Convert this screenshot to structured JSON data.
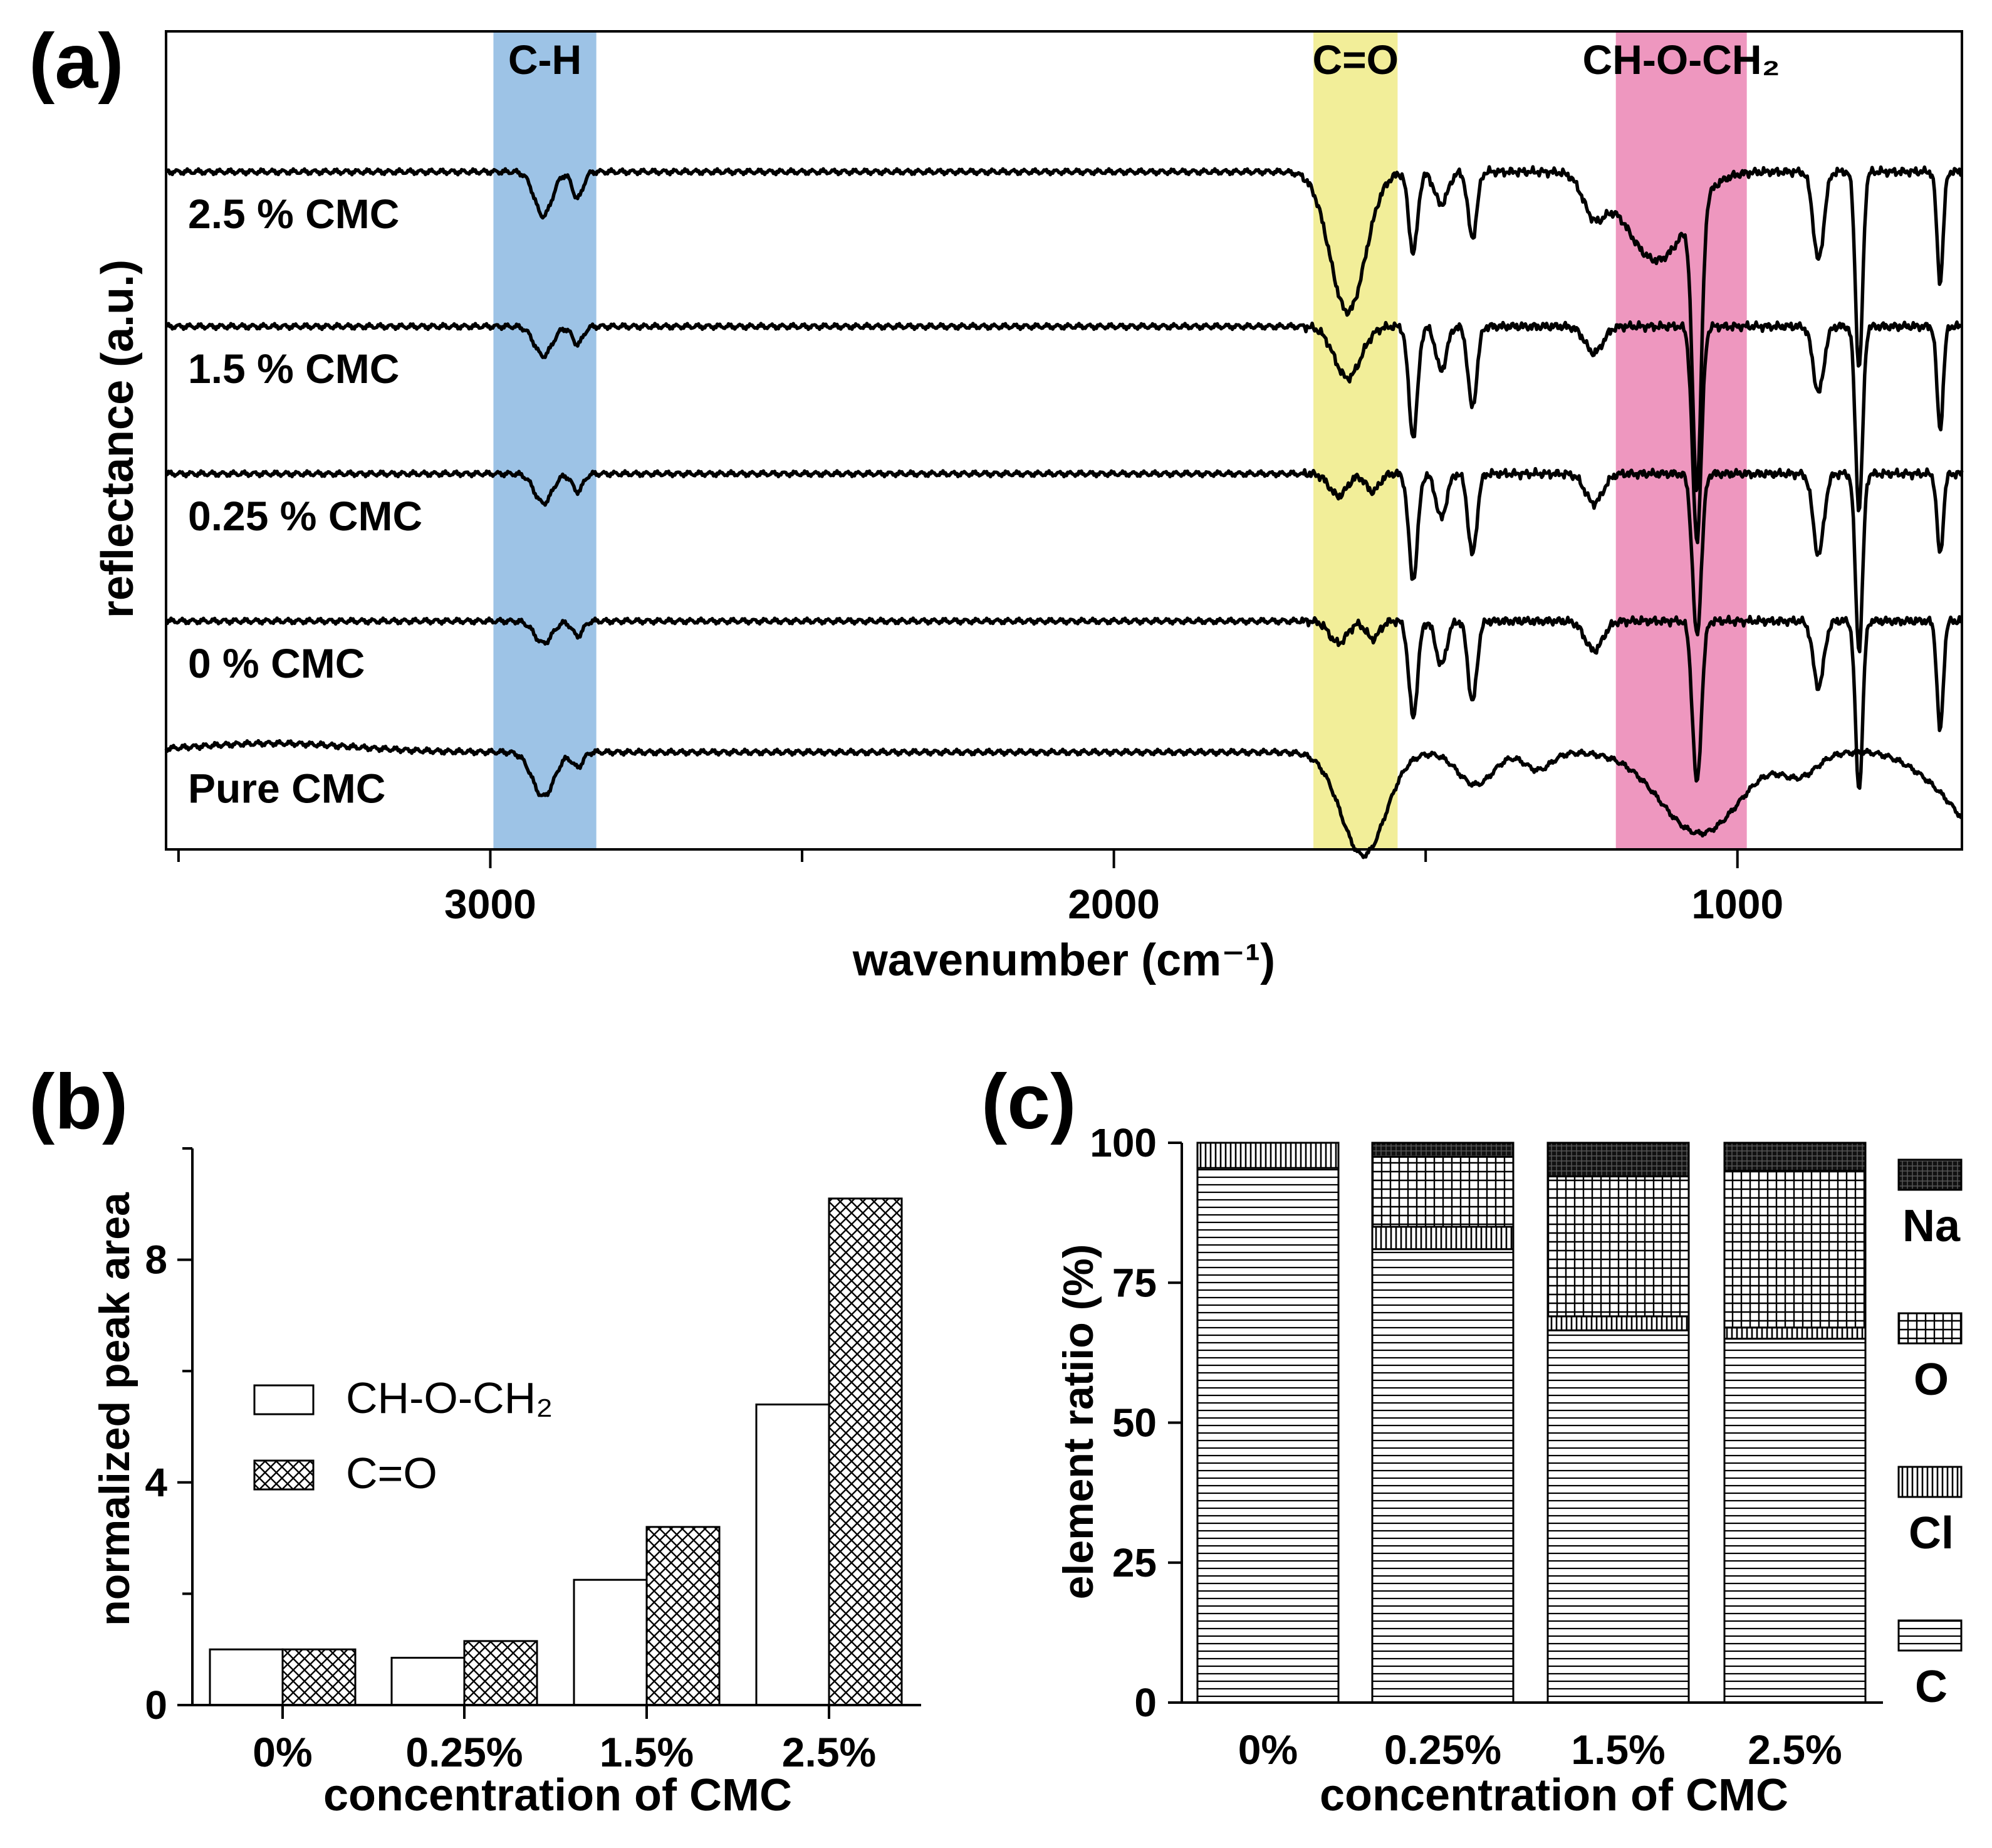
{
  "chart_data": [
    {
      "panel": "(a)",
      "type": "line",
      "xlabel": "wavenumber (cm⁻¹)",
      "ylabel": "reflectance (a.u.)",
      "xlim": [
        3520,
        640
      ],
      "xticks": [
        3000,
        2000,
        1000
      ],
      "xtick_labels": [
        "3000",
        "2000",
        "1000"
      ],
      "bands": [
        {
          "label": "C-H",
          "from": 2995,
          "to": 2830,
          "color": "#9dc3e6"
        },
        {
          "label": "C=O",
          "from": 1680,
          "to": 1545,
          "color": "#f2ee99"
        },
        {
          "label": "CH-O-CH₂",
          "from": 1195,
          "to": 985,
          "color": "#ee97bf"
        }
      ],
      "series": [
        {
          "name": "2.5 % CMC",
          "label": "2.5 % CMC",
          "baseline": 4.6,
          "dips": [
            [
              2915,
              0.3,
              20
            ],
            [
              2860,
              0.18,
              12
            ],
            [
              1625,
              0.95,
              40
            ],
            [
              1520,
              0.55,
              10
            ],
            [
              1475,
              0.22,
              15
            ],
            [
              1425,
              0.45,
              10
            ],
            [
              1230,
              0.25,
              25
            ],
            [
              1130,
              0.6,
              70
            ],
            [
              1065,
              1.9,
              10
            ],
            [
              870,
              0.6,
              12
            ],
            [
              805,
              1.35,
              8
            ],
            [
              675,
              0.75,
              7
            ]
          ]
        },
        {
          "name": "1.5 % CMC",
          "label": "1.5 % CMC",
          "baseline": 3.55,
          "dips": [
            [
              2915,
              0.2,
              20
            ],
            [
              2860,
              0.12,
              12
            ],
            [
              1625,
              0.35,
              30
            ],
            [
              1520,
              0.75,
              10
            ],
            [
              1475,
              0.3,
              12
            ],
            [
              1425,
              0.55,
              10
            ],
            [
              1230,
              0.18,
              20
            ],
            [
              1065,
              1.45,
              10
            ],
            [
              870,
              0.45,
              12
            ],
            [
              805,
              1.25,
              8
            ],
            [
              675,
              0.7,
              7
            ]
          ]
        },
        {
          "name": "0.25 % CMC",
          "label": "0.25 % CMC",
          "baseline": 2.55,
          "dips": [
            [
              2915,
              0.2,
              20
            ],
            [
              2860,
              0.12,
              12
            ],
            [
              1640,
              0.15,
              20
            ],
            [
              1585,
              0.12,
              15
            ],
            [
              1520,
              0.72,
              10
            ],
            [
              1475,
              0.3,
              12
            ],
            [
              1425,
              0.55,
              10
            ],
            [
              1230,
              0.2,
              20
            ],
            [
              1065,
              1.1,
              10
            ],
            [
              870,
              0.55,
              12
            ],
            [
              805,
              1.2,
              8
            ],
            [
              675,
              0.55,
              7
            ]
          ]
        },
        {
          "name": "0 % CMC",
          "label": "0 % CMC",
          "baseline": 1.55,
          "dips": [
            [
              2915,
              0.15,
              20
            ],
            [
              2860,
              0.1,
              12
            ],
            [
              1640,
              0.15,
              20
            ],
            [
              1585,
              0.12,
              15
            ],
            [
              1520,
              0.65,
              10
            ],
            [
              1475,
              0.3,
              12
            ],
            [
              1425,
              0.55,
              10
            ],
            [
              1230,
              0.2,
              20
            ],
            [
              1065,
              1.1,
              10
            ],
            [
              870,
              0.45,
              12
            ],
            [
              805,
              1.15,
              8
            ],
            [
              675,
              0.75,
              7
            ]
          ]
        },
        {
          "name": "Pure CMC",
          "label": "Pure CMC",
          "baseline": 0.7,
          "dips": [
            [
              2915,
              0.3,
              25
            ],
            [
              2860,
              0.1,
              12
            ],
            [
              1600,
              0.7,
              50
            ],
            [
              1420,
              0.22,
              40
            ],
            [
              1320,
              0.12,
              30
            ],
            [
              1060,
              0.55,
              90
            ],
            [
              900,
              0.15,
              40
            ]
          ]
        }
      ]
    },
    {
      "panel": "(b)",
      "type": "bar",
      "title": "",
      "xlabel": "concentration of CMC",
      "ylabel": "normalized peak area",
      "categories": [
        "0%",
        "0.25%",
        "1.5%",
        "2.5%"
      ],
      "ylim": [
        0,
        10
      ],
      "yticks": [
        0,
        4,
        8
      ],
      "ytick_labels": [
        "0",
        "4",
        "8"
      ],
      "legend": {
        "position": "middle-left"
      },
      "series": [
        {
          "name": "CH-O-CH₂",
          "pattern": "white",
          "values": [
            1.0,
            0.85,
            2.25,
            5.4
          ]
        },
        {
          "name": "C=O",
          "pattern": "crosshatch",
          "values": [
            1.0,
            1.15,
            3.2,
            9.1
          ]
        }
      ]
    },
    {
      "panel": "(c)",
      "type": "bar",
      "stacked": true,
      "xlabel": "concentration of CMC",
      "ylabel": "element ratiio (%)",
      "categories": [
        "0%",
        "0.25%",
        "1.5%",
        "2.5%"
      ],
      "ylim": [
        0,
        100
      ],
      "yticks": [
        0,
        25,
        50,
        75,
        100
      ],
      "ytick_labels": [
        "0",
        "25",
        "50",
        "75",
        "100"
      ],
      "legend": {
        "position": "right"
      },
      "series": [
        {
          "name": "C",
          "pattern": "horizontal",
          "values": [
            95.5,
            81.0,
            66.5,
            65.0
          ]
        },
        {
          "name": "Cl",
          "pattern": "vertical",
          "values": [
            4.5,
            4.0,
            2.5,
            2.0
          ]
        },
        {
          "name": "O",
          "pattern": "grid",
          "values": [
            0,
            12.5,
            25.0,
            28.0
          ]
        },
        {
          "name": "Na",
          "pattern": "dense",
          "values": [
            0,
            2.5,
            6.0,
            5.0
          ]
        }
      ]
    }
  ]
}
